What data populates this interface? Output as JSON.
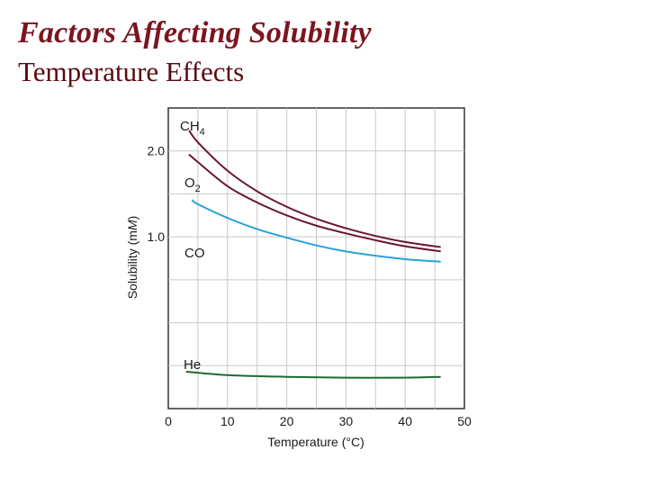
{
  "slide": {
    "title": "Factors Affecting Solubility",
    "subtitle": "Temperature Effects"
  },
  "chart_data": {
    "type": "line",
    "xlabel": "Temperature (°C)",
    "ylabel": "Solubility (mM)",
    "xlim": [
      0,
      50
    ],
    "ylim": [
      -1.0,
      2.5
    ],
    "xticks": [
      0,
      10,
      20,
      30,
      40,
      50
    ],
    "xtick_labels": [
      "0",
      "10",
      "20",
      "30",
      "40",
      "50"
    ],
    "yticks": [
      1.0,
      2.0
    ],
    "ytick_labels": [
      "1.0",
      "2.0"
    ],
    "grid": true,
    "series": [
      {
        "name": "CH4",
        "label_main": "CH",
        "label_sub": "4",
        "color": "#6b1535",
        "x": [
          3.5,
          5,
          10,
          15,
          20,
          25,
          30,
          35,
          40,
          46
        ],
        "y": [
          2.24,
          2.1,
          1.77,
          1.53,
          1.35,
          1.21,
          1.1,
          1.01,
          0.94,
          0.88
        ]
      },
      {
        "name": "O2",
        "label_main": "O",
        "label_sub": "2",
        "color": "#6b1535",
        "x": [
          3.5,
          5,
          10,
          15,
          20,
          25,
          30,
          35,
          40,
          46
        ],
        "y": [
          1.96,
          1.87,
          1.59,
          1.4,
          1.25,
          1.13,
          1.04,
          0.96,
          0.89,
          0.83
        ]
      },
      {
        "name": "CO",
        "label_main": "CO",
        "label_sub": "",
        "color": "#2aa3d6",
        "x": [
          4,
          5,
          10,
          15,
          20,
          25,
          30,
          35,
          40,
          46
        ],
        "y": [
          1.43,
          1.38,
          1.22,
          1.09,
          0.99,
          0.9,
          0.83,
          0.78,
          0.74,
          0.71
        ]
      },
      {
        "name": "He",
        "label_main": "He",
        "label_sub": "",
        "color": "#1e6b32",
        "x": [
          3,
          10,
          20,
          30,
          40,
          46
        ],
        "y": [
          -0.57,
          -0.61,
          -0.63,
          -0.64,
          -0.64,
          -0.63
        ]
      }
    ]
  }
}
